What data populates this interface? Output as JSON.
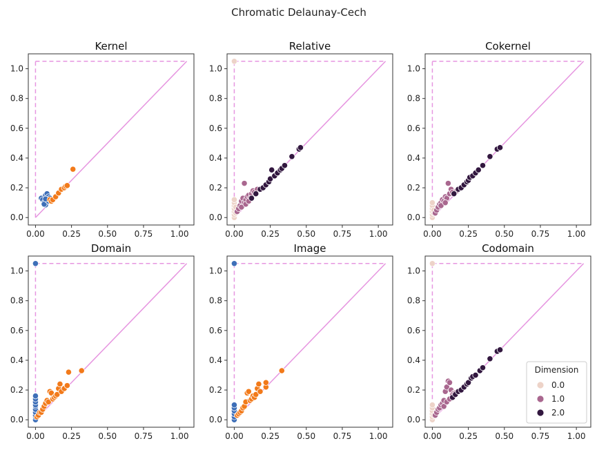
{
  "figure": {
    "suptitle": "Chromatic Delaunay-Cech"
  },
  "colors": {
    "diagonal": "#E695E0",
    "axis": "#333333",
    "dim0_blue": "#3E6FB8",
    "dim1_orange": "#F27A1A",
    "dim0_pale": "#EDD3C8",
    "dim1_mauve": "#A9678F",
    "dim2_dark": "#32173F"
  },
  "legend": {
    "title": "Dimension",
    "entries": [
      {
        "label": "0.0",
        "color": "#EDD3C8"
      },
      {
        "label": "1.0",
        "color": "#A9678F"
      },
      {
        "label": "2.0",
        "color": "#32173F"
      }
    ]
  },
  "chart_data": [
    {
      "id": "kernel",
      "type": "scatter",
      "title": "Kernel",
      "xlim": [
        -0.05,
        1.1
      ],
      "ylim": [
        -0.05,
        1.1
      ],
      "xticks": [
        "0.00",
        "0.25",
        "0.50",
        "0.75",
        "1.00"
      ],
      "yticks": [
        "0.0",
        "0.2",
        "0.4",
        "0.6",
        "0.8",
        "1.0"
      ],
      "infinity_level": 1.05,
      "series": [
        {
          "color": "#3E6FB8",
          "points": [
            [
              0.04,
              0.13
            ],
            [
              0.05,
              0.12
            ],
            [
              0.06,
              0.1
            ],
            [
              0.07,
              0.085
            ],
            [
              0.06,
              0.09
            ],
            [
              0.07,
              0.15
            ],
            [
              0.08,
              0.16
            ],
            [
              0.09,
              0.14
            ],
            [
              0.1,
              0.13
            ],
            [
              0.08,
              0.12
            ],
            [
              0.09,
              0.11
            ],
            [
              0.07,
              0.125
            ]
          ]
        },
        {
          "color": "#F27A1A",
          "points": [
            [
              0.1,
              0.12
            ],
            [
              0.11,
              0.11
            ],
            [
              0.12,
              0.12
            ],
            [
              0.14,
              0.14
            ],
            [
              0.16,
              0.165
            ],
            [
              0.18,
              0.19
            ],
            [
              0.2,
              0.2
            ],
            [
              0.21,
              0.21
            ],
            [
              0.22,
              0.215
            ],
            [
              0.26,
              0.325
            ]
          ]
        }
      ]
    },
    {
      "id": "relative",
      "type": "scatter",
      "title": "Relative",
      "xlim": [
        -0.05,
        1.1
      ],
      "ylim": [
        -0.05,
        1.1
      ],
      "xticks": [
        "0.00",
        "0.25",
        "0.50",
        "0.75",
        "1.00"
      ],
      "yticks": [
        "0.0",
        "0.2",
        "0.4",
        "0.6",
        "0.8",
        "1.0"
      ],
      "infinity_level": 1.05,
      "series": [
        {
          "color": "#EDD3C8",
          "points": [
            [
              0.0,
              1.05
            ],
            [
              0.0,
              0.0
            ],
            [
              0.0,
              0.02
            ],
            [
              0.0,
              0.04
            ],
            [
              0.0,
              0.06
            ],
            [
              0.0,
              0.08
            ],
            [
              0.0,
              0.1
            ],
            [
              0.0,
              0.12
            ],
            [
              0.01,
              0.03
            ],
            [
              0.01,
              0.07
            ]
          ]
        },
        {
          "color": "#A9678F",
          "points": [
            [
              0.02,
              0.04
            ],
            [
              0.03,
              0.06
            ],
            [
              0.04,
              0.08
            ],
            [
              0.05,
              0.11
            ],
            [
              0.06,
              0.13
            ],
            [
              0.07,
              0.1
            ],
            [
              0.07,
              0.23
            ],
            [
              0.08,
              0.12
            ],
            [
              0.09,
              0.14
            ],
            [
              0.1,
              0.15
            ],
            [
              0.11,
              0.13
            ],
            [
              0.12,
              0.16
            ],
            [
              0.13,
              0.18
            ],
            [
              0.14,
              0.17
            ],
            [
              0.15,
              0.16
            ],
            [
              0.16,
              0.19
            ],
            [
              0.05,
              0.07
            ],
            [
              0.08,
              0.09
            ],
            [
              0.1,
              0.11
            ],
            [
              0.12,
              0.13
            ]
          ]
        },
        {
          "color": "#32173F",
          "points": [
            [
              0.12,
              0.13
            ],
            [
              0.15,
              0.16
            ],
            [
              0.18,
              0.19
            ],
            [
              0.2,
              0.2
            ],
            [
              0.22,
              0.22
            ],
            [
              0.24,
              0.24
            ],
            [
              0.25,
              0.26
            ],
            [
              0.26,
              0.32
            ],
            [
              0.28,
              0.28
            ],
            [
              0.3,
              0.3
            ],
            [
              0.32,
              0.32
            ],
            [
              0.33,
              0.33
            ],
            [
              0.35,
              0.35
            ],
            [
              0.4,
              0.41
            ],
            [
              0.45,
              0.46
            ],
            [
              0.46,
              0.47
            ]
          ]
        }
      ]
    },
    {
      "id": "cokernel",
      "type": "scatter",
      "title": "Cokernel",
      "xlim": [
        -0.05,
        1.1
      ],
      "ylim": [
        -0.05,
        1.1
      ],
      "xticks": [
        "0.00",
        "0.25",
        "0.50",
        "0.75",
        "1.00"
      ],
      "yticks": [
        "0.0",
        "0.2",
        "0.4",
        "0.6",
        "0.8",
        "1.0"
      ],
      "infinity_level": 1.05,
      "series": [
        {
          "color": "#EDD3C8",
          "points": [
            [
              0.0,
              0.0
            ],
            [
              0.0,
              0.02
            ],
            [
              0.0,
              0.04
            ],
            [
              0.0,
              0.06
            ],
            [
              0.0,
              0.08
            ],
            [
              0.0,
              0.1
            ],
            [
              0.01,
              0.03
            ],
            [
              0.01,
              0.05
            ]
          ]
        },
        {
          "color": "#A9678F",
          "points": [
            [
              0.02,
              0.03
            ],
            [
              0.03,
              0.05
            ],
            [
              0.04,
              0.07
            ],
            [
              0.05,
              0.09
            ],
            [
              0.06,
              0.1
            ],
            [
              0.07,
              0.12
            ],
            [
              0.08,
              0.11
            ],
            [
              0.09,
              0.14
            ],
            [
              0.1,
              0.13
            ],
            [
              0.11,
              0.23
            ],
            [
              0.12,
              0.16
            ],
            [
              0.13,
              0.19
            ],
            [
              0.14,
              0.17
            ],
            [
              0.15,
              0.16
            ],
            [
              0.17,
              0.18
            ],
            [
              0.06,
              0.08
            ],
            [
              0.09,
              0.1
            ]
          ]
        },
        {
          "color": "#32173F",
          "points": [
            [
              0.15,
              0.16
            ],
            [
              0.18,
              0.19
            ],
            [
              0.2,
              0.2
            ],
            [
              0.22,
              0.22
            ],
            [
              0.24,
              0.24
            ],
            [
              0.25,
              0.25
            ],
            [
              0.26,
              0.27
            ],
            [
              0.28,
              0.28
            ],
            [
              0.3,
              0.3
            ],
            [
              0.32,
              0.32
            ],
            [
              0.35,
              0.35
            ],
            [
              0.4,
              0.41
            ],
            [
              0.45,
              0.46
            ],
            [
              0.47,
              0.47
            ]
          ]
        }
      ]
    },
    {
      "id": "domain",
      "type": "scatter",
      "title": "Domain",
      "xlim": [
        -0.05,
        1.1
      ],
      "ylim": [
        -0.05,
        1.1
      ],
      "xticks": [
        "0.00",
        "0.25",
        "0.50",
        "0.75",
        "1.00"
      ],
      "yticks": [
        "0.0",
        "0.2",
        "0.4",
        "0.6",
        "0.8",
        "1.0"
      ],
      "infinity_level": 1.05,
      "series": [
        {
          "color": "#3E6FB8",
          "points": [
            [
              0.0,
              1.05
            ],
            [
              0.0,
              0.0
            ],
            [
              0.0,
              0.02
            ],
            [
              0.0,
              0.03
            ],
            [
              0.0,
              0.05
            ],
            [
              0.0,
              0.07
            ],
            [
              0.0,
              0.09
            ],
            [
              0.0,
              0.1
            ],
            [
              0.0,
              0.12
            ],
            [
              0.0,
              0.14
            ],
            [
              0.0,
              0.16
            ]
          ]
        },
        {
          "color": "#F27A1A",
          "points": [
            [
              0.01,
              0.02
            ],
            [
              0.02,
              0.03
            ],
            [
              0.03,
              0.05
            ],
            [
              0.04,
              0.05
            ],
            [
              0.05,
              0.07
            ],
            [
              0.06,
              0.09
            ],
            [
              0.07,
              0.11
            ],
            [
              0.08,
              0.13
            ],
            [
              0.09,
              0.12
            ],
            [
              0.1,
              0.19
            ],
            [
              0.11,
              0.18
            ],
            [
              0.12,
              0.14
            ],
            [
              0.13,
              0.15
            ],
            [
              0.14,
              0.16
            ],
            [
              0.15,
              0.17
            ],
            [
              0.16,
              0.21
            ],
            [
              0.17,
              0.24
            ],
            [
              0.18,
              0.19
            ],
            [
              0.2,
              0.21
            ],
            [
              0.22,
              0.23
            ],
            [
              0.23,
              0.32
            ],
            [
              0.32,
              0.33
            ]
          ]
        }
      ]
    },
    {
      "id": "image",
      "type": "scatter",
      "title": "Image",
      "xlim": [
        -0.05,
        1.1
      ],
      "ylim": [
        -0.05,
        1.1
      ],
      "xticks": [
        "0.00",
        "0.25",
        "0.50",
        "0.75",
        "1.00"
      ],
      "yticks": [
        "0.0",
        "0.2",
        "0.4",
        "0.6",
        "0.8",
        "1.0"
      ],
      "infinity_level": 1.05,
      "series": [
        {
          "color": "#3E6FB8",
          "points": [
            [
              0.0,
              1.05
            ],
            [
              0.0,
              0.0
            ],
            [
              0.0,
              0.02
            ],
            [
              0.0,
              0.04
            ],
            [
              0.0,
              0.06
            ],
            [
              0.0,
              0.08
            ],
            [
              0.0,
              0.1
            ]
          ]
        },
        {
          "color": "#F27A1A",
          "points": [
            [
              0.02,
              0.03
            ],
            [
              0.03,
              0.04
            ],
            [
              0.04,
              0.05
            ],
            [
              0.05,
              0.06
            ],
            [
              0.06,
              0.08
            ],
            [
              0.07,
              0.09
            ],
            [
              0.08,
              0.12
            ],
            [
              0.09,
              0.18
            ],
            [
              0.1,
              0.19
            ],
            [
              0.11,
              0.13
            ],
            [
              0.12,
              0.14
            ],
            [
              0.13,
              0.16
            ],
            [
              0.14,
              0.15
            ],
            [
              0.15,
              0.17
            ],
            [
              0.16,
              0.21
            ],
            [
              0.17,
              0.24
            ],
            [
              0.18,
              0.19
            ],
            [
              0.22,
              0.22
            ],
            [
              0.22,
              0.25
            ],
            [
              0.33,
              0.33
            ]
          ]
        }
      ]
    },
    {
      "id": "codomain",
      "type": "scatter",
      "title": "Codomain",
      "xlim": [
        -0.05,
        1.1
      ],
      "ylim": [
        -0.05,
        1.1
      ],
      "xticks": [
        "0.00",
        "0.25",
        "0.50",
        "0.75",
        "1.00"
      ],
      "yticks": [
        "0.0",
        "0.2",
        "0.4",
        "0.6",
        "0.8",
        "1.0"
      ],
      "infinity_level": 1.05,
      "legend": true,
      "series": [
        {
          "color": "#EDD3C8",
          "points": [
            [
              0.0,
              1.05
            ],
            [
              0.0,
              0.0
            ],
            [
              0.0,
              0.02
            ],
            [
              0.0,
              0.04
            ],
            [
              0.0,
              0.06
            ],
            [
              0.0,
              0.08
            ],
            [
              0.0,
              0.1
            ],
            [
              0.01,
              0.03
            ]
          ]
        },
        {
          "color": "#A9678F",
          "points": [
            [
              0.02,
              0.03
            ],
            [
              0.03,
              0.05
            ],
            [
              0.04,
              0.07
            ],
            [
              0.05,
              0.08
            ],
            [
              0.06,
              0.1
            ],
            [
              0.07,
              0.11
            ],
            [
              0.08,
              0.13
            ],
            [
              0.09,
              0.19
            ],
            [
              0.1,
              0.22
            ],
            [
              0.11,
              0.26
            ],
            [
              0.12,
              0.25
            ],
            [
              0.13,
              0.2
            ],
            [
              0.14,
              0.17
            ],
            [
              0.15,
              0.18
            ],
            [
              0.16,
              0.18
            ],
            [
              0.08,
              0.09
            ],
            [
              0.1,
              0.12
            ],
            [
              0.12,
              0.14
            ]
          ]
        },
        {
          "color": "#32173F",
          "points": [
            [
              0.14,
              0.15
            ],
            [
              0.16,
              0.17
            ],
            [
              0.18,
              0.19
            ],
            [
              0.2,
              0.2
            ],
            [
              0.22,
              0.22
            ],
            [
              0.24,
              0.24
            ],
            [
              0.25,
              0.25
            ],
            [
              0.27,
              0.28
            ],
            [
              0.28,
              0.29
            ],
            [
              0.3,
              0.3
            ],
            [
              0.33,
              0.33
            ],
            [
              0.35,
              0.35
            ],
            [
              0.4,
              0.41
            ],
            [
              0.45,
              0.46
            ],
            [
              0.47,
              0.47
            ]
          ]
        }
      ]
    }
  ]
}
